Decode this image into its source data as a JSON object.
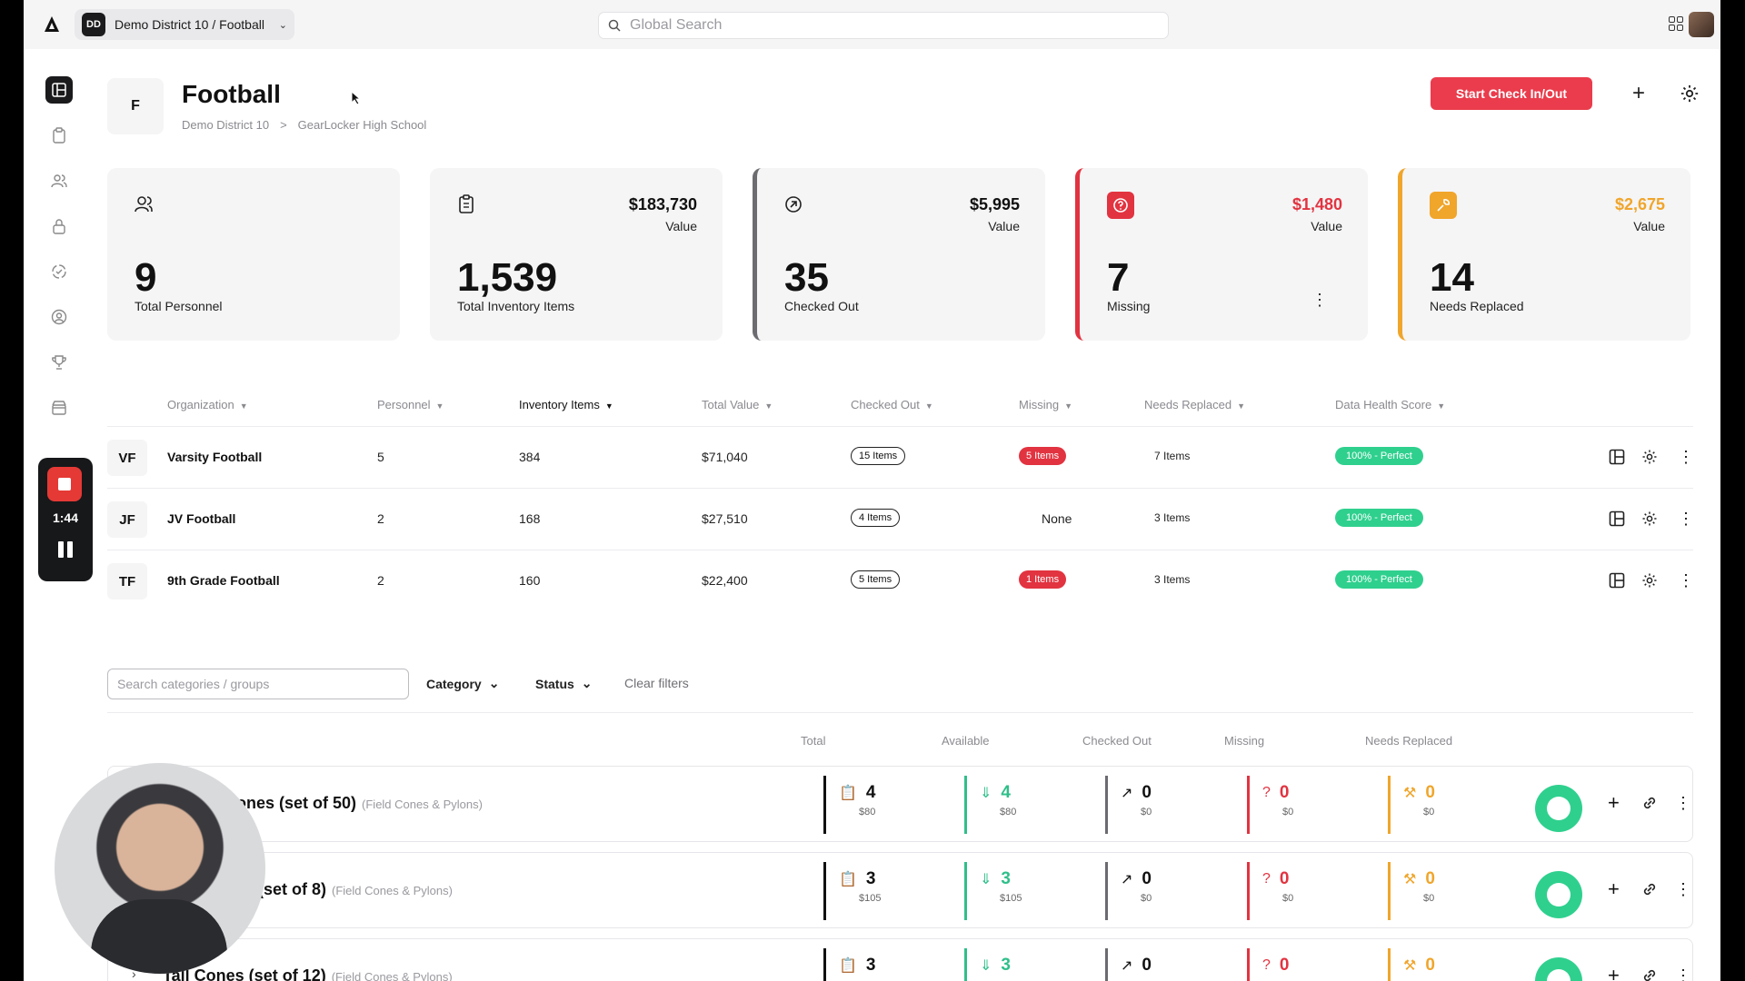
{
  "topbar": {
    "workspace_badge": "DD",
    "workspace_label": "Demo District 10 / Football",
    "search_placeholder": "Global Search"
  },
  "recorder": {
    "time": "1:44"
  },
  "header": {
    "avatar": "F",
    "title": "Football",
    "breadcrumbs": [
      "Demo District 10",
      ">",
      "GearLocker High School"
    ],
    "primary_button": "Start Check In/Out"
  },
  "stats": [
    {
      "icon": "personnel-icon",
      "number": "9",
      "label": "Total Personnel"
    },
    {
      "icon": "clipboard-icon",
      "value": "$183,730",
      "value_label": "Value",
      "number": "1,539",
      "label": "Total Inventory Items"
    },
    {
      "icon": "checkout-icon",
      "value": "$5,995",
      "value_label": "Value",
      "number": "35",
      "label": "Checked Out",
      "accent": "#6b6b70"
    },
    {
      "icon": "question-icon",
      "value": "$1,480",
      "value_label": "Value",
      "number": "7",
      "label": "Missing",
      "accent": "#e23340"
    },
    {
      "icon": "wrench-icon",
      "value": "$2,675",
      "value_label": "Value",
      "number": "14",
      "label": "Needs Replaced",
      "accent": "#f0a52b"
    }
  ],
  "org_table": {
    "columns": [
      "Organization",
      "Personnel",
      "Inventory Items",
      "Total Value",
      "Checked Out",
      "Missing",
      "Needs Replaced",
      "Data Health Score"
    ],
    "rows": [
      {
        "avatar": "VF",
        "name": "Varsity Football",
        "personnel": "5",
        "inventory": "384",
        "value": "$71,040",
        "checked_out": "15 Items",
        "missing": "5 Items",
        "needs_replaced": "7 Items",
        "health": "100% - Perfect"
      },
      {
        "avatar": "JF",
        "name": "JV Football",
        "personnel": "2",
        "inventory": "168",
        "value": "$27,510",
        "checked_out": "4 Items",
        "missing": "None",
        "needs_replaced": "3 Items",
        "health": "100% - Perfect"
      },
      {
        "avatar": "TF",
        "name": "9th Grade Football",
        "personnel": "2",
        "inventory": "160",
        "value": "$22,400",
        "checked_out": "5 Items",
        "missing": "1 Items",
        "needs_replaced": "3 Items",
        "health": "100% - Perfect"
      }
    ]
  },
  "filters": {
    "search_placeholder": "Search categories / groups",
    "category": "Category",
    "status": "Status",
    "clear": "Clear filters"
  },
  "category_table": {
    "columns": [
      "Total",
      "Available",
      "Checked Out",
      "Missing",
      "Needs Replaced"
    ],
    "rows": [
      {
        "name": "Cones (set of 50)",
        "group": "(Field Cones & Pylons)",
        "total": "4",
        "total_value": "$80",
        "available": "4",
        "available_value": "$80",
        "checked_out": "0",
        "checked_out_value": "$0",
        "missing": "0",
        "missing_value": "$0",
        "needs_replaced": "0",
        "needs_replaced_value": "$0"
      },
      {
        "name": "ons (set of 8)",
        "group": "(Field Cones & Pylons)",
        "total": "3",
        "total_value": "$105",
        "available": "3",
        "available_value": "$105",
        "checked_out": "0",
        "checked_out_value": "$0",
        "missing": "0",
        "missing_value": "$0",
        "needs_replaced": "0",
        "needs_replaced_value": "$0"
      },
      {
        "name": "Tall Cones (set of 12)",
        "group": "(Field Cones & Pylons)",
        "total": "3",
        "total_value": "",
        "available": "3",
        "available_value": "",
        "checked_out": "0",
        "checked_out_value": "",
        "missing": "0",
        "missing_value": "",
        "needs_replaced": "0",
        "needs_replaced_value": ""
      }
    ]
  },
  "colors": {
    "accent_red": "#ea3c4c",
    "missing": "#e23340",
    "warning": "#f0a52b",
    "success": "#2fd08e",
    "available": "#2fbf8a"
  }
}
